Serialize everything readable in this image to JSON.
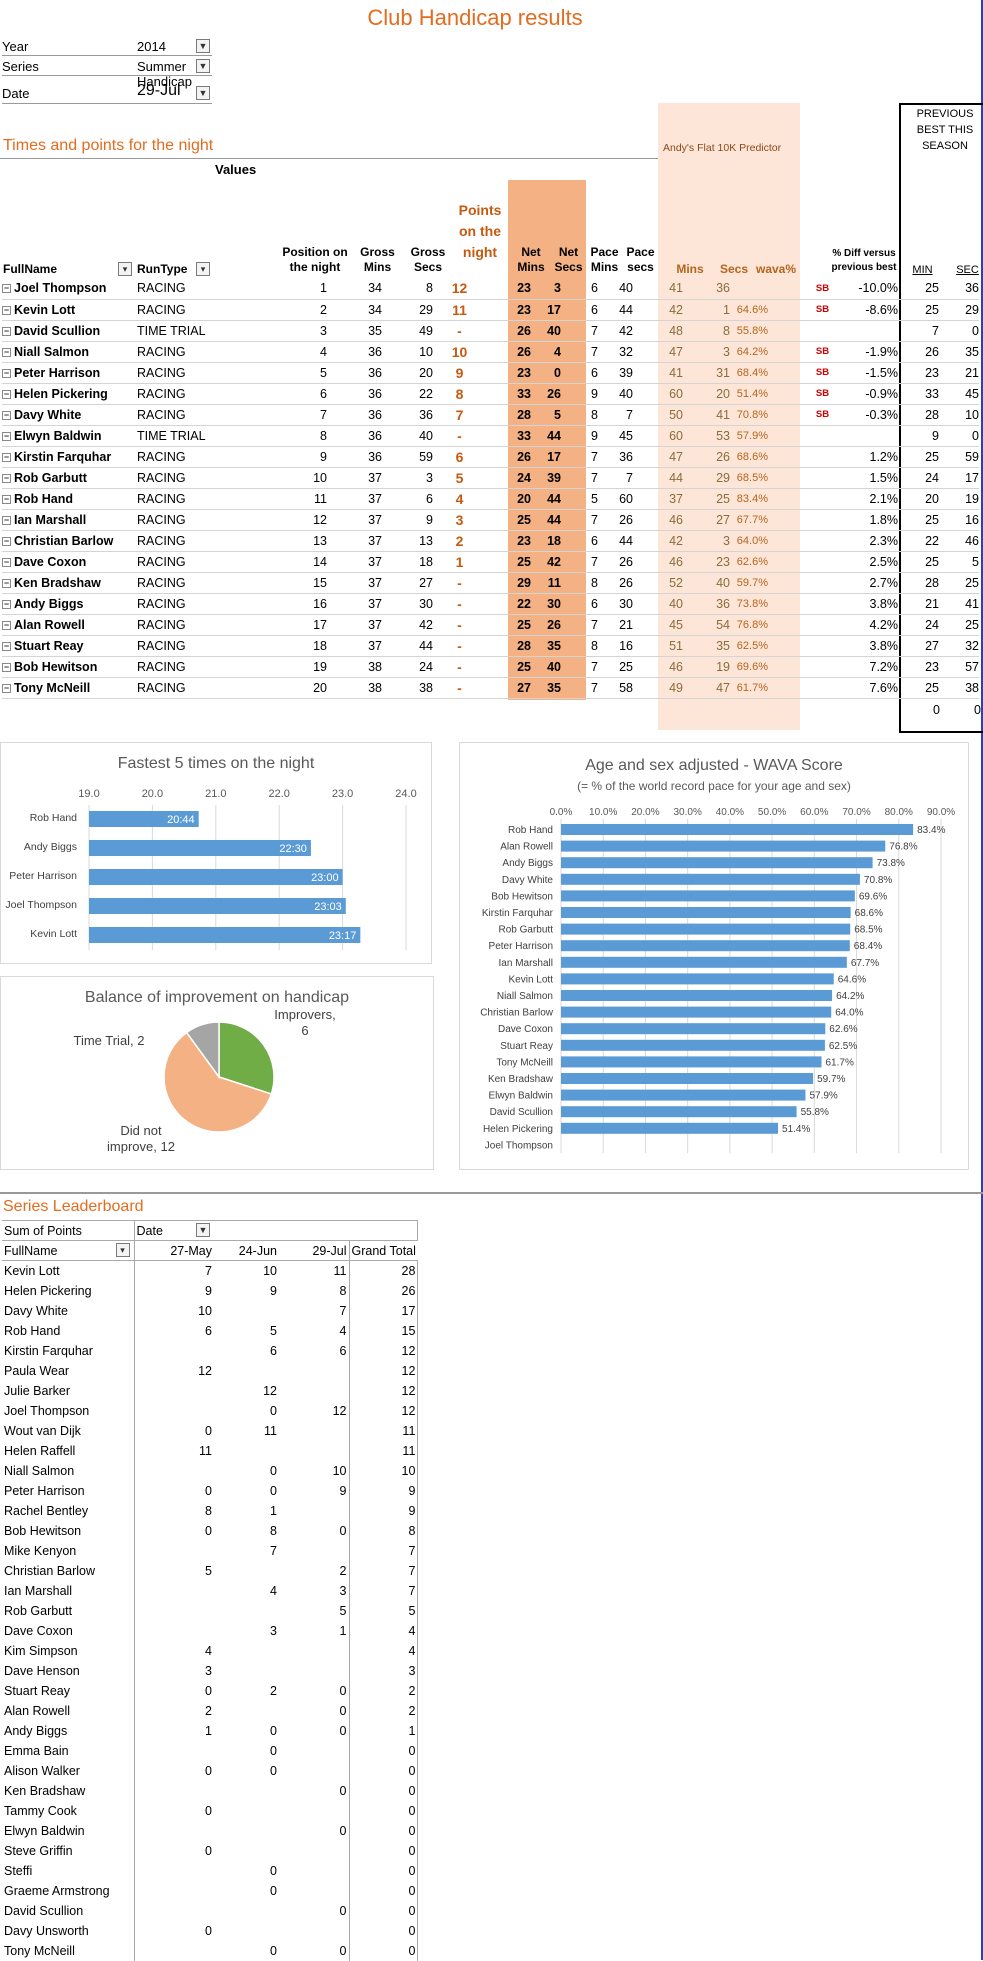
{
  "title": "Club Handicap results",
  "filters": [
    {
      "label": "Year",
      "value": "2014"
    },
    {
      "label": "Series",
      "value": "Summer Handicap"
    },
    {
      "label": "Date",
      "value": "29-Jul"
    }
  ],
  "results": {
    "section_title": "Times and points for the night",
    "values_label": "Values",
    "predictor_label": "Andy's Flat 10K Predictor",
    "previous_best_label": "PREVIOUS BEST THIS SEASON",
    "headers": {
      "fullname": "FullName",
      "runtype": "RunType",
      "position": "Position on the night",
      "gross_mins": "Gross Mins",
      "gross_secs": "Gross Secs",
      "points": "Points on the night",
      "net_mins": "Net Mins",
      "net_secs": "Net Secs",
      "pace_mins": "Pace Mins",
      "pace_secs": "Pace secs",
      "pred_mins": "Mins",
      "pred_secs": "Secs",
      "wava": "wava%",
      "diff": "% Diff versus previous best",
      "min": "MIN",
      "sec": "SEC"
    },
    "rows": [
      {
        "name": "Joel Thompson",
        "type": "RACING",
        "pos": "1",
        "gm": "34",
        "gs": "8",
        "pts": "12",
        "nm": "23",
        "ns": "3",
        "pm": "6",
        "ps": "40",
        "pdm": "41",
        "pds": "36",
        "wava": "",
        "sb": "SB",
        "diff": "-10.0%",
        "bm": "25",
        "bs": "36"
      },
      {
        "name": "Kevin Lott",
        "type": "RACING",
        "pos": "2",
        "gm": "34",
        "gs": "29",
        "pts": "11",
        "nm": "23",
        "ns": "17",
        "pm": "6",
        "ps": "44",
        "pdm": "42",
        "pds": "1",
        "wava": "64.6%",
        "sb": "SB",
        "diff": "-8.6%",
        "bm": "25",
        "bs": "29"
      },
      {
        "name": "David Scullion",
        "type": "TIME TRIAL",
        "pos": "3",
        "gm": "35",
        "gs": "49",
        "pts": "-",
        "nm": "26",
        "ns": "40",
        "pm": "7",
        "ps": "42",
        "pdm": "48",
        "pds": "8",
        "wava": "55.8%",
        "sb": "",
        "diff": "",
        "bm": "7",
        "bs": "0"
      },
      {
        "name": "Niall Salmon",
        "type": "RACING",
        "pos": "4",
        "gm": "36",
        "gs": "10",
        "pts": "10",
        "nm": "26",
        "ns": "4",
        "pm": "7",
        "ps": "32",
        "pdm": "47",
        "pds": "3",
        "wava": "64.2%",
        "sb": "SB",
        "diff": "-1.9%",
        "bm": "26",
        "bs": "35"
      },
      {
        "name": "Peter Harrison",
        "type": "RACING",
        "pos": "5",
        "gm": "36",
        "gs": "20",
        "pts": "9",
        "nm": "23",
        "ns": "0",
        "pm": "6",
        "ps": "39",
        "pdm": "41",
        "pds": "31",
        "wava": "68.4%",
        "sb": "SB",
        "diff": "-1.5%",
        "bm": "23",
        "bs": "21"
      },
      {
        "name": "Helen Pickering",
        "type": "RACING",
        "pos": "6",
        "gm": "36",
        "gs": "22",
        "pts": "8",
        "nm": "33",
        "ns": "26",
        "pm": "9",
        "ps": "40",
        "pdm": "60",
        "pds": "20",
        "wava": "51.4%",
        "sb": "SB",
        "diff": "-0.9%",
        "bm": "33",
        "bs": "45"
      },
      {
        "name": "Davy White",
        "type": "RACING",
        "pos": "7",
        "gm": "36",
        "gs": "36",
        "pts": "7",
        "nm": "28",
        "ns": "5",
        "pm": "8",
        "ps": "7",
        "pdm": "50",
        "pds": "41",
        "wava": "70.8%",
        "sb": "SB",
        "diff": "-0.3%",
        "bm": "28",
        "bs": "10"
      },
      {
        "name": "Elwyn Baldwin",
        "type": "TIME TRIAL",
        "pos": "8",
        "gm": "36",
        "gs": "40",
        "pts": "-",
        "nm": "33",
        "ns": "44",
        "pm": "9",
        "ps": "45",
        "pdm": "60",
        "pds": "53",
        "wava": "57.9%",
        "sb": "",
        "diff": "",
        "bm": "9",
        "bs": "0"
      },
      {
        "name": "Kirstin Farquhar",
        "type": "RACING",
        "pos": "9",
        "gm": "36",
        "gs": "59",
        "pts": "6",
        "nm": "26",
        "ns": "17",
        "pm": "7",
        "ps": "36",
        "pdm": "47",
        "pds": "26",
        "wava": "68.6%",
        "sb": "",
        "diff": "1.2%",
        "bm": "25",
        "bs": "59"
      },
      {
        "name": "Rob Garbutt",
        "type": "RACING",
        "pos": "10",
        "gm": "37",
        "gs": "3",
        "pts": "5",
        "nm": "24",
        "ns": "39",
        "pm": "7",
        "ps": "7",
        "pdm": "44",
        "pds": "29",
        "wava": "68.5%",
        "sb": "",
        "diff": "1.5%",
        "bm": "24",
        "bs": "17"
      },
      {
        "name": "Rob Hand",
        "type": "RACING",
        "pos": "11",
        "gm": "37",
        "gs": "6",
        "pts": "4",
        "nm": "20",
        "ns": "44",
        "pm": "5",
        "ps": "60",
        "pdm": "37",
        "pds": "25",
        "wava": "83.4%",
        "sb": "",
        "diff": "2.1%",
        "bm": "20",
        "bs": "19"
      },
      {
        "name": "Ian Marshall",
        "type": "RACING",
        "pos": "12",
        "gm": "37",
        "gs": "9",
        "pts": "3",
        "nm": "25",
        "ns": "44",
        "pm": "7",
        "ps": "26",
        "pdm": "46",
        "pds": "27",
        "wava": "67.7%",
        "sb": "",
        "diff": "1.8%",
        "bm": "25",
        "bs": "16"
      },
      {
        "name": "Christian Barlow",
        "type": "RACING",
        "pos": "13",
        "gm": "37",
        "gs": "13",
        "pts": "2",
        "nm": "23",
        "ns": "18",
        "pm": "6",
        "ps": "44",
        "pdm": "42",
        "pds": "3",
        "wava": "64.0%",
        "sb": "",
        "diff": "2.3%",
        "bm": "22",
        "bs": "46"
      },
      {
        "name": "Dave Coxon",
        "type": "RACING",
        "pos": "14",
        "gm": "37",
        "gs": "18",
        "pts": "1",
        "nm": "25",
        "ns": "42",
        "pm": "7",
        "ps": "26",
        "pdm": "46",
        "pds": "23",
        "wava": "62.6%",
        "sb": "",
        "diff": "2.5%",
        "bm": "25",
        "bs": "5"
      },
      {
        "name": "Ken Bradshaw",
        "type": "RACING",
        "pos": "15",
        "gm": "37",
        "gs": "27",
        "pts": "-",
        "nm": "29",
        "ns": "11",
        "pm": "8",
        "ps": "26",
        "pdm": "52",
        "pds": "40",
        "wava": "59.7%",
        "sb": "",
        "diff": "2.7%",
        "bm": "28",
        "bs": "25"
      },
      {
        "name": "Andy Biggs",
        "type": "RACING",
        "pos": "16",
        "gm": "37",
        "gs": "30",
        "pts": "-",
        "nm": "22",
        "ns": "30",
        "pm": "6",
        "ps": "30",
        "pdm": "40",
        "pds": "36",
        "wava": "73.8%",
        "sb": "",
        "diff": "3.8%",
        "bm": "21",
        "bs": "41"
      },
      {
        "name": "Alan Rowell",
        "type": "RACING",
        "pos": "17",
        "gm": "37",
        "gs": "42",
        "pts": "-",
        "nm": "25",
        "ns": "26",
        "pm": "7",
        "ps": "21",
        "pdm": "45",
        "pds": "54",
        "wava": "76.8%",
        "sb": "",
        "diff": "4.2%",
        "bm": "24",
        "bs": "25"
      },
      {
        "name": "Stuart Reay",
        "type": "RACING",
        "pos": "18",
        "gm": "37",
        "gs": "44",
        "pts": "-",
        "nm": "28",
        "ns": "35",
        "pm": "8",
        "ps": "16",
        "pdm": "51",
        "pds": "35",
        "wava": "62.5%",
        "sb": "",
        "diff": "3.8%",
        "bm": "27",
        "bs": "32"
      },
      {
        "name": "Bob Hewitson",
        "type": "RACING",
        "pos": "19",
        "gm": "38",
        "gs": "24",
        "pts": "-",
        "nm": "25",
        "ns": "40",
        "pm": "7",
        "ps": "25",
        "pdm": "46",
        "pds": "19",
        "wava": "69.6%",
        "sb": "",
        "diff": "7.2%",
        "bm": "23",
        "bs": "57"
      },
      {
        "name": "Tony McNeill",
        "type": "RACING",
        "pos": "20",
        "gm": "38",
        "gs": "38",
        "pts": "-",
        "nm": "27",
        "ns": "35",
        "pm": "7",
        "ps": "58",
        "pdm": "49",
        "pds": "47",
        "wava": "61.7%",
        "sb": "",
        "diff": "7.6%",
        "bm": "25",
        "bs": "38"
      }
    ],
    "extra_row": {
      "bm": "0",
      "bs": "0"
    }
  },
  "chart_data": [
    {
      "type": "bar",
      "title": "Fastest 5 times on the night",
      "categories": [
        "Rob Hand",
        "Andy Biggs",
        "Peter Harrison",
        "Joel Thompson",
        "Kevin Lott"
      ],
      "values": [
        20.73,
        22.5,
        23.0,
        23.05,
        23.28
      ],
      "data_labels": [
        "20:44",
        "22:30",
        "23:00",
        "23:03",
        "23:17"
      ],
      "xlim": [
        19.0,
        24.0
      ],
      "ticks": [
        "19.0",
        "20.0",
        "21.0",
        "22.0",
        "23.0",
        "24.0"
      ]
    },
    {
      "type": "pie",
      "title": "Balance of improvement on handicap",
      "slices": [
        {
          "label": "Improvers, 6",
          "value": 6,
          "color": "#70ad47"
        },
        {
          "label": "Did not improve, 12",
          "value": 12,
          "color": "#f4b183"
        },
        {
          "label": "Time Trial, 2",
          "value": 2,
          "color": "#a5a5a5"
        }
      ]
    },
    {
      "type": "bar",
      "title": "Age and sex adjusted - WAVA Score",
      "subtitle": "(= % of the world record pace for your age and sex)",
      "categories": [
        "Rob Hand",
        "Alan Rowell",
        "Andy Biggs",
        "Davy White",
        "Bob Hewitson",
        "Kirstin Farquhar",
        "Rob Garbutt",
        "Peter Harrison",
        "Ian Marshall",
        "Kevin Lott",
        "Niall Salmon",
        "Christian Barlow",
        "Dave Coxon",
        "Stuart Reay",
        "Tony McNeill",
        "Ken Bradshaw",
        "Elwyn Baldwin",
        "David Scullion",
        "Helen Pickering",
        "Joel Thompson"
      ],
      "values": [
        83.4,
        76.8,
        73.8,
        70.8,
        69.6,
        68.6,
        68.5,
        68.4,
        67.7,
        64.6,
        64.2,
        64.0,
        62.6,
        62.5,
        61.7,
        59.7,
        57.9,
        55.8,
        51.4,
        null
      ],
      "data_labels": [
        "83.4%",
        "76.8%",
        "73.8%",
        "70.8%",
        "69.6%",
        "68.6%",
        "68.5%",
        "68.4%",
        "67.7%",
        "64.6%",
        "64.2%",
        "64.0%",
        "62.6%",
        "62.5%",
        "61.7%",
        "59.7%",
        "57.9%",
        "55.8%",
        "51.4%",
        ""
      ],
      "xlim": [
        0,
        90
      ],
      "ticks": [
        "0.0%",
        "10.0%",
        "20.0%",
        "30.0%",
        "40.0%",
        "50.0%",
        "60.0%",
        "70.0%",
        "80.0%",
        "90.0%"
      ]
    }
  ],
  "leaderboard": {
    "section_title": "Series Leaderboard",
    "sum_label": "Sum of Points",
    "date_label": "Date",
    "fullname_label": "FullName",
    "columns": [
      "27-May",
      "24-Jun",
      "29-Jul",
      "Grand Total"
    ],
    "rows": [
      [
        "Kevin Lott",
        "7",
        "10",
        "11",
        "28"
      ],
      [
        "Helen Pickering",
        "9",
        "9",
        "8",
        "26"
      ],
      [
        "Davy White",
        "10",
        "",
        "7",
        "17"
      ],
      [
        "Rob Hand",
        "6",
        "5",
        "4",
        "15"
      ],
      [
        "Kirstin Farquhar",
        "",
        "6",
        "6",
        "12"
      ],
      [
        "Paula Wear",
        "12",
        "",
        "",
        "12"
      ],
      [
        "Julie Barker",
        "",
        "12",
        "",
        "12"
      ],
      [
        "Joel Thompson",
        "",
        "0",
        "12",
        "12"
      ],
      [
        "Wout van Dijk",
        "0",
        "11",
        "",
        "11"
      ],
      [
        "Helen Raffell",
        "11",
        "",
        "",
        "11"
      ],
      [
        "Niall Salmon",
        "",
        "0",
        "10",
        "10"
      ],
      [
        "Peter Harrison",
        "0",
        "0",
        "9",
        "9"
      ],
      [
        "Rachel Bentley",
        "8",
        "1",
        "",
        "9"
      ],
      [
        "Bob Hewitson",
        "0",
        "8",
        "0",
        "8"
      ],
      [
        "Mike Kenyon",
        "",
        "7",
        "",
        "7"
      ],
      [
        "Christian Barlow",
        "5",
        "",
        "2",
        "7"
      ],
      [
        "Ian Marshall",
        "",
        "4",
        "3",
        "7"
      ],
      [
        "Rob Garbutt",
        "",
        "",
        "5",
        "5"
      ],
      [
        "Dave Coxon",
        "",
        "3",
        "1",
        "4"
      ],
      [
        "Kim Simpson",
        "4",
        "",
        "",
        "4"
      ],
      [
        "Dave Henson",
        "3",
        "",
        "",
        "3"
      ],
      [
        "Stuart Reay",
        "0",
        "2",
        "0",
        "2"
      ],
      [
        "Alan Rowell",
        "2",
        "",
        "0",
        "2"
      ],
      [
        "Andy Biggs",
        "1",
        "0",
        "0",
        "1"
      ],
      [
        "Emma Bain",
        "",
        "0",
        "",
        "0"
      ],
      [
        "Alison Walker",
        "0",
        "0",
        "",
        "0"
      ],
      [
        "Ken Bradshaw",
        "",
        "",
        "0",
        "0"
      ],
      [
        "Tammy Cook",
        "0",
        "",
        "",
        "0"
      ],
      [
        "Elwyn Baldwin",
        "",
        "",
        "0",
        "0"
      ],
      [
        "Steve Griffin",
        "0",
        "",
        "",
        "0"
      ],
      [
        "Steffi",
        "",
        "0",
        "",
        "0"
      ],
      [
        "Graeme Armstrong",
        "",
        "0",
        "",
        "0"
      ],
      [
        "David Scullion",
        "",
        "",
        "0",
        "0"
      ],
      [
        "Davy Unsworth",
        "0",
        "",
        "",
        "0"
      ],
      [
        "Tony McNeill",
        "",
        "0",
        "0",
        "0"
      ]
    ]
  }
}
